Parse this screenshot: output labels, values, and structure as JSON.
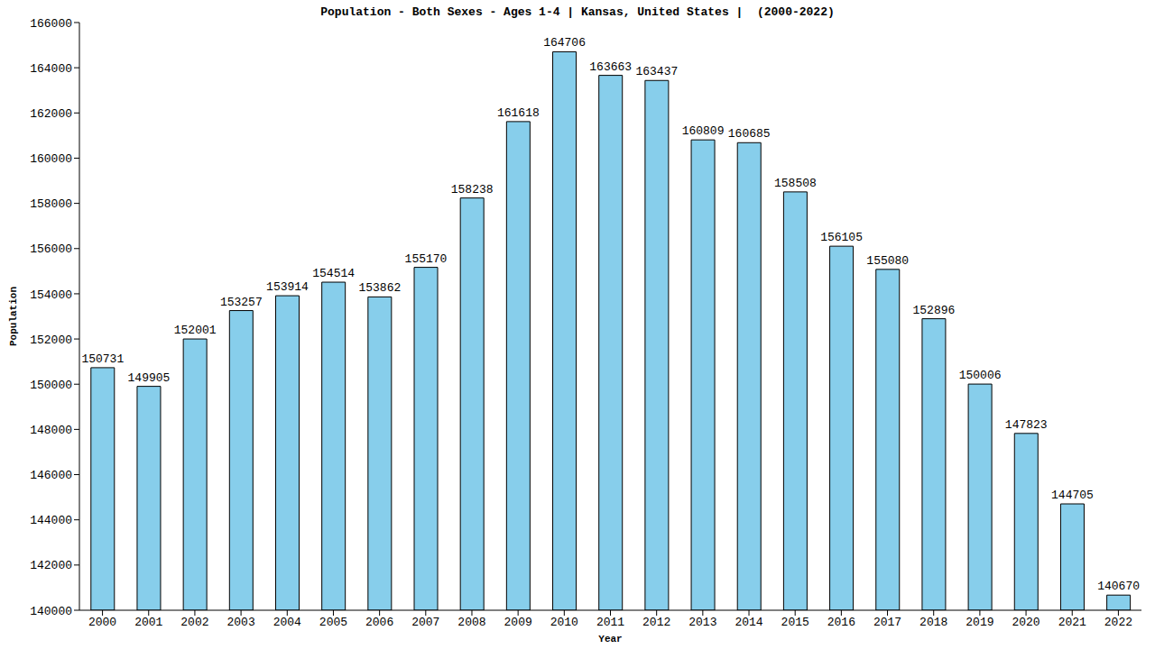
{
  "chart_data": {
    "type": "bar",
    "title": "Population - Both Sexes - Ages 1-4 | Kansas, United States |  (2000-2022)",
    "x_label": "Year",
    "y_label": "Population",
    "categories": [
      "2000",
      "2001",
      "2002",
      "2003",
      "2004",
      "2005",
      "2006",
      "2007",
      "2008",
      "2009",
      "2010",
      "2011",
      "2012",
      "2013",
      "2014",
      "2015",
      "2016",
      "2017",
      "2018",
      "2019",
      "2020",
      "2021",
      "2022"
    ],
    "values": [
      150731,
      149905,
      152001,
      153257,
      153914,
      154514,
      153862,
      155170,
      158238,
      161618,
      164706,
      163663,
      163437,
      160809,
      160685,
      158508,
      156105,
      155080,
      152896,
      150006,
      147823,
      144705,
      140670
    ],
    "color": "#87ceeb",
    "ylim": [
      140000,
      166000
    ],
    "yticks": [
      140000,
      142000,
      144000,
      146000,
      148000,
      150000,
      152000,
      154000,
      156000,
      158000,
      160000,
      162000,
      164000,
      166000
    ],
    "grid": false,
    "data_labels": true
  }
}
